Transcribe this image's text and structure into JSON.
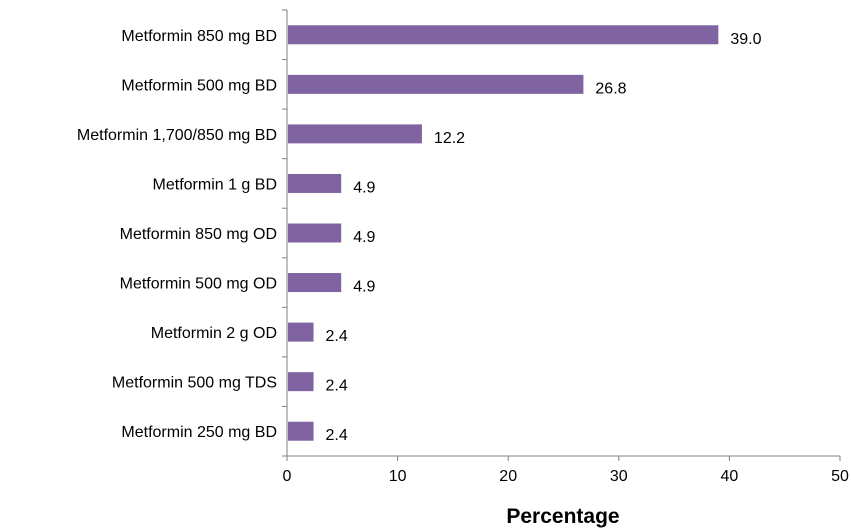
{
  "chart_data": {
    "type": "bar",
    "orientation": "horizontal",
    "categories": [
      "Metformin 850 mg BD",
      "Metformin 500 mg BD",
      "Metformin 1,700/850 mg BD",
      "Metformin 1 g BD",
      "Metformin 850 mg OD",
      "Metformin 500 mg OD",
      "Metformin 2 g OD",
      "Metformin 500 mg TDS",
      "Metformin 250 mg BD"
    ],
    "values": [
      39.0,
      26.8,
      12.2,
      4.9,
      4.9,
      4.9,
      2.4,
      2.4,
      2.4
    ],
    "data_labels": [
      "39.0",
      "26.8",
      "12.2",
      "4.9",
      "4.9",
      "4.9",
      "2.4",
      "2.4",
      "2.4"
    ],
    "xlabel": "Percentage",
    "ylabel": "",
    "xlim": [
      0,
      50
    ],
    "x_ticks": [
      "0",
      "10",
      "20",
      "30",
      "40",
      "50"
    ],
    "grid": false,
    "legend": "none",
    "bar_color": "#8064a2"
  }
}
